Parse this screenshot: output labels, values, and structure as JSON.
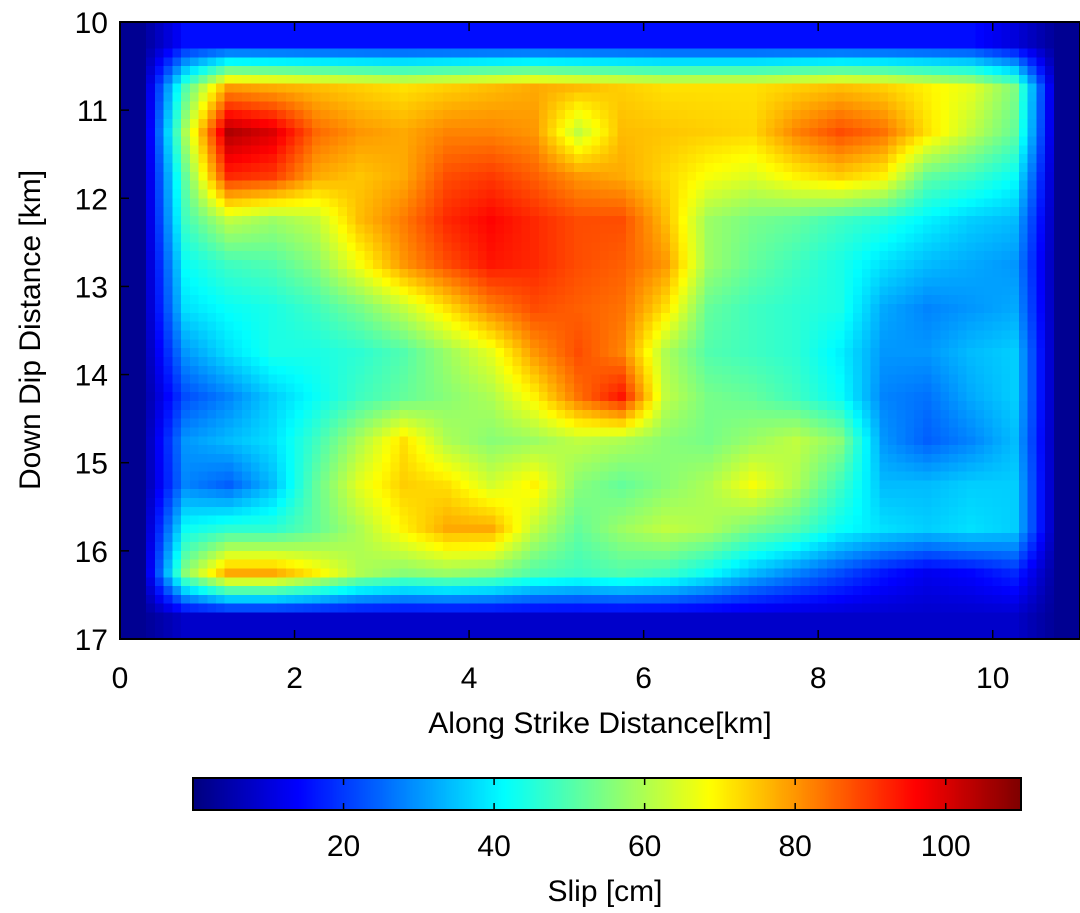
{
  "chart_data": {
    "type": "heatmap",
    "title": "",
    "xlabel": "Along Strike Distance[km]",
    "ylabel": "Down Dip Distance [km]",
    "xlim": [
      0,
      11
    ],
    "ylim": [
      17,
      10
    ],
    "xticks": [
      0,
      2,
      4,
      6,
      8,
      10
    ],
    "yticks": [
      10,
      11,
      12,
      13,
      14,
      15,
      16,
      17
    ],
    "colorbar": {
      "label": "Slip [cm]",
      "range": [
        0,
        110
      ],
      "ticks": [
        20,
        40,
        60,
        80,
        100
      ],
      "colormap": "jet",
      "orientation": "horizontal",
      "placement": "bottom"
    },
    "grid_step_km": 0.5,
    "x_centers_km": [
      0.25,
      0.75,
      1.25,
      1.75,
      2.25,
      2.75,
      3.25,
      3.75,
      4.25,
      4.75,
      5.25,
      5.75,
      6.25,
      6.75,
      7.25,
      7.75,
      8.25,
      8.75,
      9.25,
      9.75,
      10.25,
      10.75
    ],
    "y_centers_km": [
      10.25,
      10.75,
      11.25,
      11.75,
      12.25,
      12.75,
      13.25,
      13.75,
      14.25,
      14.75,
      15.25,
      15.75,
      16.25,
      16.75
    ],
    "slip_cm": [
      [
        2,
        15,
        15,
        15,
        15,
        15,
        15,
        15,
        15,
        15,
        15,
        15,
        15,
        15,
        15,
        15,
        15,
        15,
        15,
        15,
        10,
        2
      ],
      [
        2,
        50,
        80,
        78,
        76,
        74,
        72,
        74,
        76,
        78,
        76,
        74,
        72,
        72,
        72,
        74,
        76,
        74,
        70,
        66,
        55,
        2
      ],
      [
        2,
        60,
        105,
        100,
        85,
        80,
        78,
        82,
        82,
        80,
        62,
        76,
        75,
        74,
        73,
        82,
        88,
        84,
        72,
        62,
        52,
        2
      ],
      [
        2,
        52,
        92,
        90,
        78,
        75,
        78,
        88,
        90,
        86,
        80,
        78,
        73,
        68,
        65,
        70,
        74,
        70,
        52,
        48,
        42,
        2
      ],
      [
        2,
        48,
        62,
        58,
        62,
        76,
        83,
        92,
        96,
        92,
        88,
        88,
        76,
        58,
        54,
        52,
        48,
        45,
        40,
        36,
        34,
        2
      ],
      [
        2,
        42,
        48,
        50,
        56,
        68,
        80,
        88,
        94,
        92,
        88,
        86,
        80,
        58,
        52,
        48,
        44,
        38,
        34,
        32,
        30,
        2
      ],
      [
        2,
        38,
        42,
        44,
        48,
        54,
        62,
        72,
        82,
        88,
        86,
        84,
        72,
        52,
        48,
        46,
        44,
        32,
        28,
        30,
        32,
        2
      ],
      [
        2,
        30,
        38,
        44,
        44,
        46,
        50,
        58,
        66,
        80,
        88,
        82,
        60,
        50,
        48,
        46,
        40,
        30,
        30,
        34,
        36,
        2
      ],
      [
        2,
        22,
        28,
        36,
        42,
        48,
        52,
        56,
        60,
        70,
        84,
        94,
        62,
        54,
        52,
        48,
        42,
        28,
        26,
        32,
        36,
        2
      ],
      [
        2,
        30,
        34,
        38,
        48,
        60,
        72,
        60,
        56,
        58,
        62,
        60,
        56,
        54,
        58,
        62,
        56,
        30,
        24,
        28,
        34,
        2
      ],
      [
        2,
        28,
        24,
        34,
        52,
        66,
        74,
        72,
        64,
        70,
        56,
        52,
        56,
        60,
        68,
        60,
        48,
        34,
        34,
        36,
        36,
        2
      ],
      [
        2,
        42,
        46,
        46,
        52,
        60,
        70,
        78,
        78,
        62,
        52,
        58,
        62,
        60,
        54,
        50,
        42,
        38,
        36,
        38,
        36,
        2
      ],
      [
        2,
        56,
        78,
        78,
        70,
        60,
        56,
        58,
        56,
        50,
        48,
        50,
        48,
        42,
        34,
        28,
        22,
        16,
        12,
        14,
        18,
        2
      ],
      [
        2,
        8,
        8,
        8,
        8,
        8,
        8,
        8,
        8,
        8,
        8,
        8,
        8,
        8,
        8,
        8,
        8,
        8,
        8,
        8,
        8,
        2
      ]
    ]
  }
}
